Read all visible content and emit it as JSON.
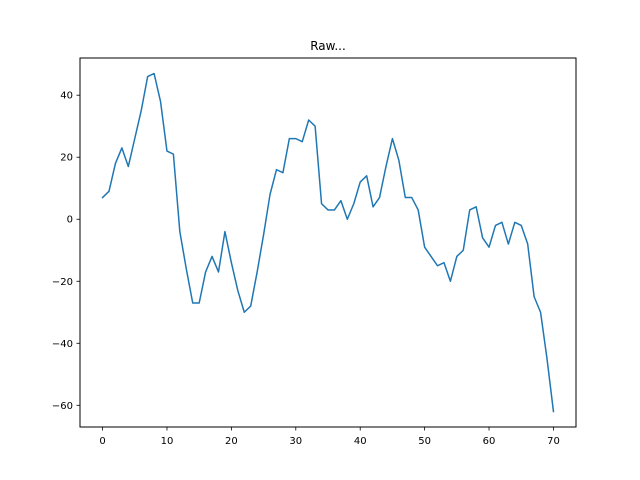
{
  "chart_data": {
    "type": "line",
    "title": "Raw...",
    "xlabel": "",
    "ylabel": "",
    "xlim": [
      -3.5,
      73.5
    ],
    "ylim": [
      -67,
      52
    ],
    "grid": false,
    "xticks": [
      0,
      10,
      20,
      30,
      40,
      50,
      60,
      70
    ],
    "yticks": [
      -60,
      -40,
      -20,
      0,
      20,
      40
    ],
    "series": [
      {
        "color": "#1f77b4",
        "x": [
          0,
          1,
          2,
          3,
          4,
          5,
          6,
          7,
          8,
          9,
          10,
          11,
          12,
          13,
          14,
          15,
          16,
          17,
          18,
          19,
          20,
          21,
          22,
          23,
          24,
          25,
          26,
          27,
          28,
          29,
          30,
          31,
          32,
          33,
          34,
          35,
          36,
          37,
          38,
          39,
          40,
          41,
          42,
          43,
          44,
          45,
          46,
          47,
          48,
          49,
          50,
          51,
          52,
          53,
          54,
          55,
          56,
          57,
          58,
          59,
          60,
          61,
          62,
          63,
          64,
          65,
          66,
          67,
          68,
          69,
          70
        ],
        "y": [
          7,
          9,
          18,
          23,
          17,
          26,
          35,
          46,
          47,
          38,
          22,
          21,
          -4,
          -16,
          -27,
          -27,
          -17,
          -12,
          -17,
          -4,
          -14,
          -23,
          -30,
          -28,
          -17,
          -5,
          8,
          16,
          15,
          26,
          26,
          25,
          32,
          30,
          5,
          3,
          3,
          6,
          0,
          5,
          12,
          14,
          4,
          7,
          17,
          26,
          19,
          7,
          7,
          3,
          -9,
          -12,
          -15,
          -14,
          -20,
          -12,
          -10,
          3,
          4,
          -6,
          -9,
          -2,
          -1,
          -8,
          -1,
          -2,
          -8,
          -25,
          -30,
          -45,
          -62
        ]
      }
    ]
  }
}
